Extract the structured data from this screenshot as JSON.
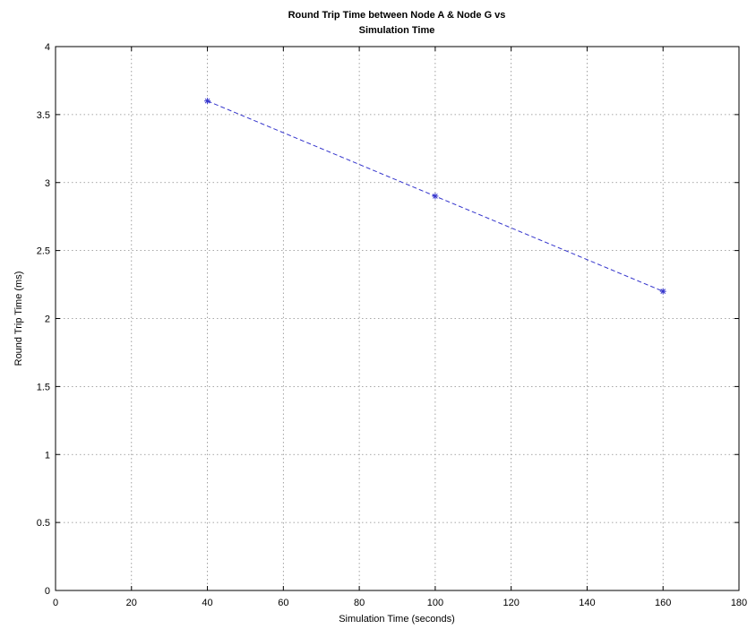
{
  "chart_data": {
    "type": "line",
    "title": [
      "Round Trip Time between Node A & Node G vs",
      "Simulation Time"
    ],
    "xlabel": "Simulation Time (seconds)",
    "ylabel": "Round Trip Time (ms)",
    "xlim": [
      0,
      180
    ],
    "ylim": [
      0,
      4
    ],
    "xticks": [
      0,
      20,
      40,
      60,
      80,
      100,
      120,
      140,
      160,
      180
    ],
    "yticks": [
      0,
      0.5,
      1,
      1.5,
      2,
      2.5,
      3,
      3.5,
      4
    ],
    "grid": true,
    "series": [
      {
        "x": [
          40,
          100,
          160
        ],
        "y": [
          3.6,
          2.9,
          2.2
        ],
        "color": "#3333cc",
        "line_style": "dashed",
        "marker": "star"
      }
    ]
  }
}
